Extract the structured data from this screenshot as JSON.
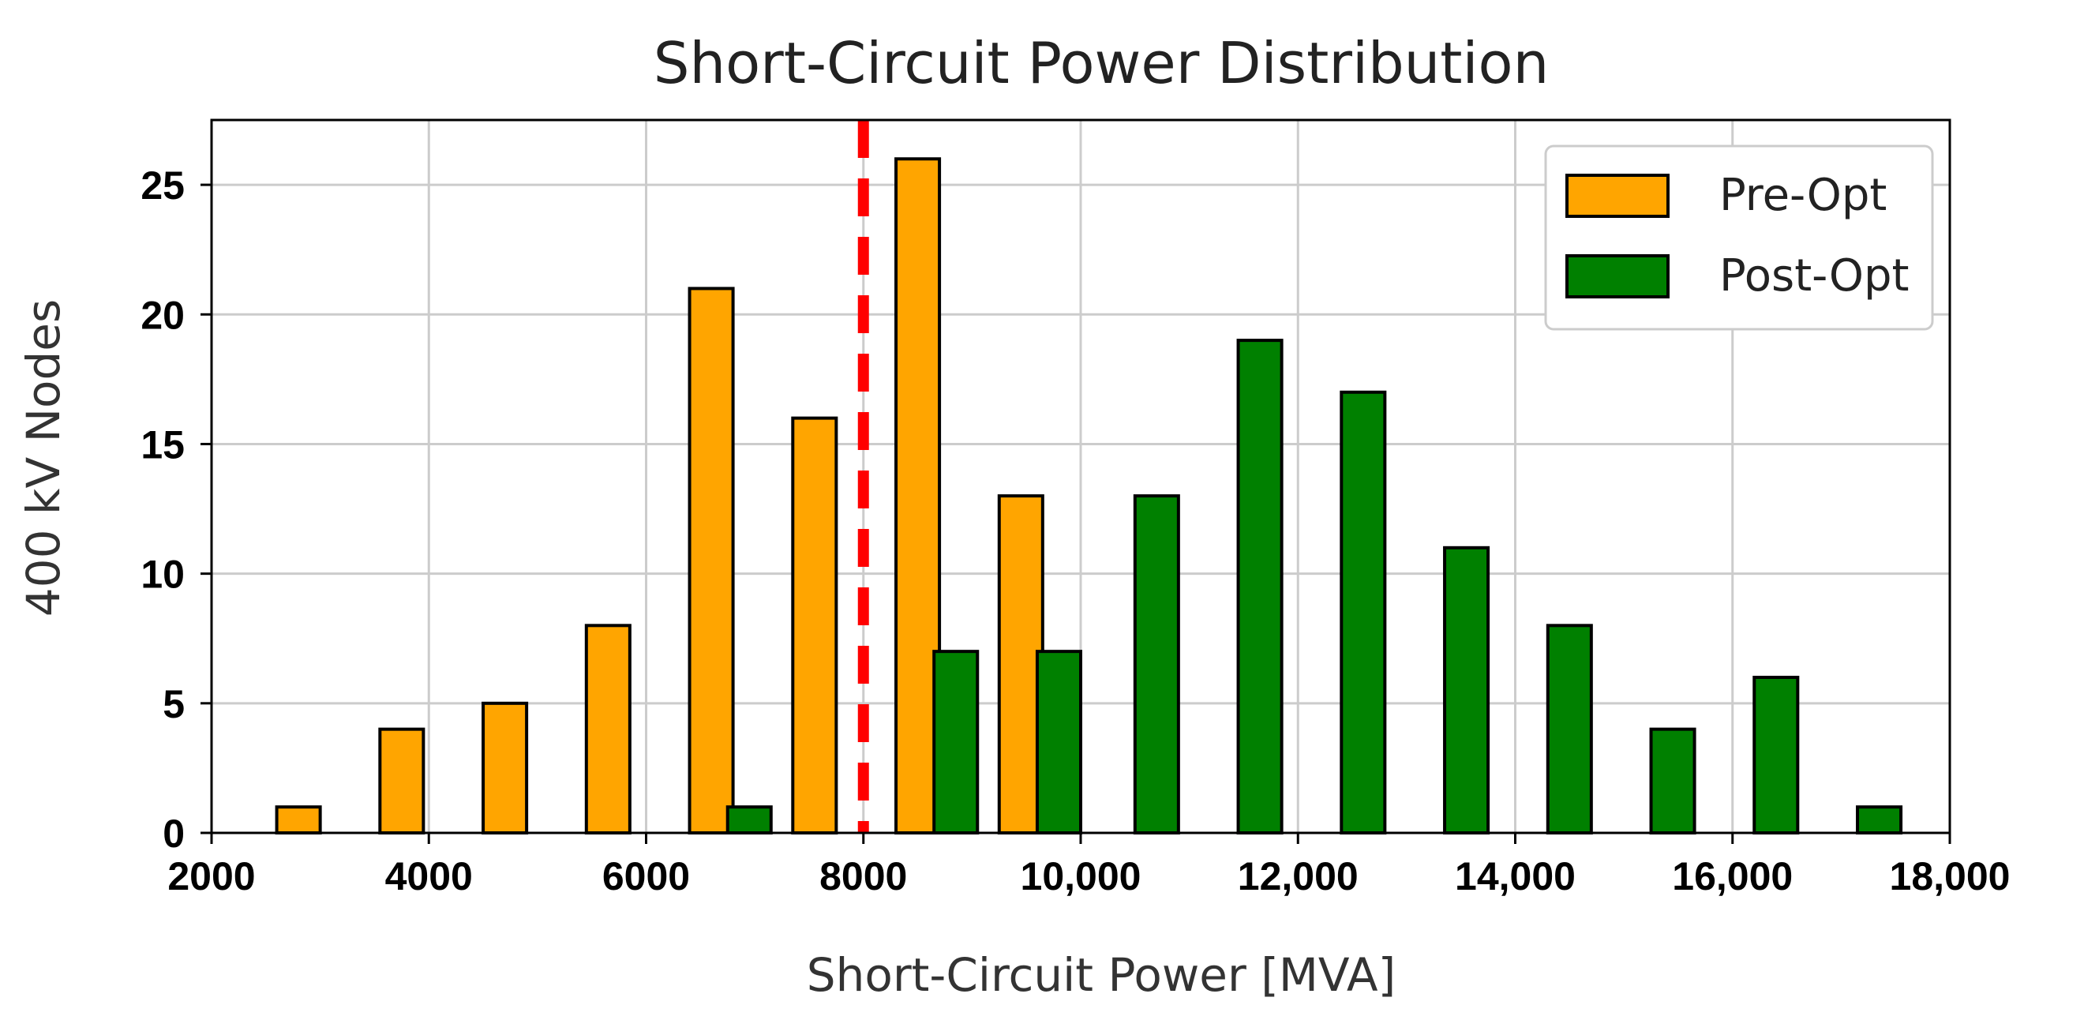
{
  "chart_data": {
    "type": "bar",
    "title": "Short-Circuit Power Distribution",
    "xlabel": "Short-Circuit Power [MVA]",
    "ylabel": "400 kV Nodes",
    "xlim": [
      2000,
      18000
    ],
    "ylim": [
      0,
      27.5
    ],
    "x_ticks": [
      2000,
      4000,
      6000,
      8000,
      10000,
      12000,
      14000,
      16000,
      18000
    ],
    "x_tick_labels": [
      "2000",
      "4000",
      "6000",
      "8000",
      "10,000",
      "12,000",
      "14,000",
      "16,000",
      "18,000"
    ],
    "y_ticks": [
      0,
      5,
      10,
      15,
      20,
      25
    ],
    "y_tick_labels": [
      "0",
      "5",
      "10",
      "15",
      "20",
      "25"
    ],
    "grid": true,
    "legend_position": "top-right",
    "threshold_line": {
      "x": 8000,
      "color": "#ff0000",
      "style": "dashed"
    },
    "series": [
      {
        "name": "Pre-Opt",
        "color": "#ffa500",
        "bars": [
          {
            "x0": 2600,
            "x1": 3000,
            "y": 1
          },
          {
            "x0": 3550,
            "x1": 3950,
            "y": 4
          },
          {
            "x0": 4500,
            "x1": 4900,
            "y": 5
          },
          {
            "x0": 5450,
            "x1": 5850,
            "y": 8
          },
          {
            "x0": 6400,
            "x1": 6800,
            "y": 21
          },
          {
            "x0": 7350,
            "x1": 7750,
            "y": 16
          },
          {
            "x0": 8300,
            "x1": 8700,
            "y": 26
          },
          {
            "x0": 9250,
            "x1": 9650,
            "y": 13
          }
        ]
      },
      {
        "name": "Post-Opt",
        "color": "#008000",
        "bars": [
          {
            "x0": 6750,
            "x1": 7150,
            "y": 1
          },
          {
            "x0": 8650,
            "x1": 9050,
            "y": 7
          },
          {
            "x0": 9600,
            "x1": 10000,
            "y": 7
          },
          {
            "x0": 10500,
            "x1": 10900,
            "y": 13
          },
          {
            "x0": 11450,
            "x1": 11850,
            "y": 19
          },
          {
            "x0": 12400,
            "x1": 12800,
            "y": 17
          },
          {
            "x0": 13350,
            "x1": 13750,
            "y": 11
          },
          {
            "x0": 14300,
            "x1": 14700,
            "y": 8
          },
          {
            "x0": 15250,
            "x1": 15650,
            "y": 4
          },
          {
            "x0": 16200,
            "x1": 16600,
            "y": 6
          },
          {
            "x0": 17150,
            "x1": 17550,
            "y": 1
          }
        ]
      }
    ]
  }
}
